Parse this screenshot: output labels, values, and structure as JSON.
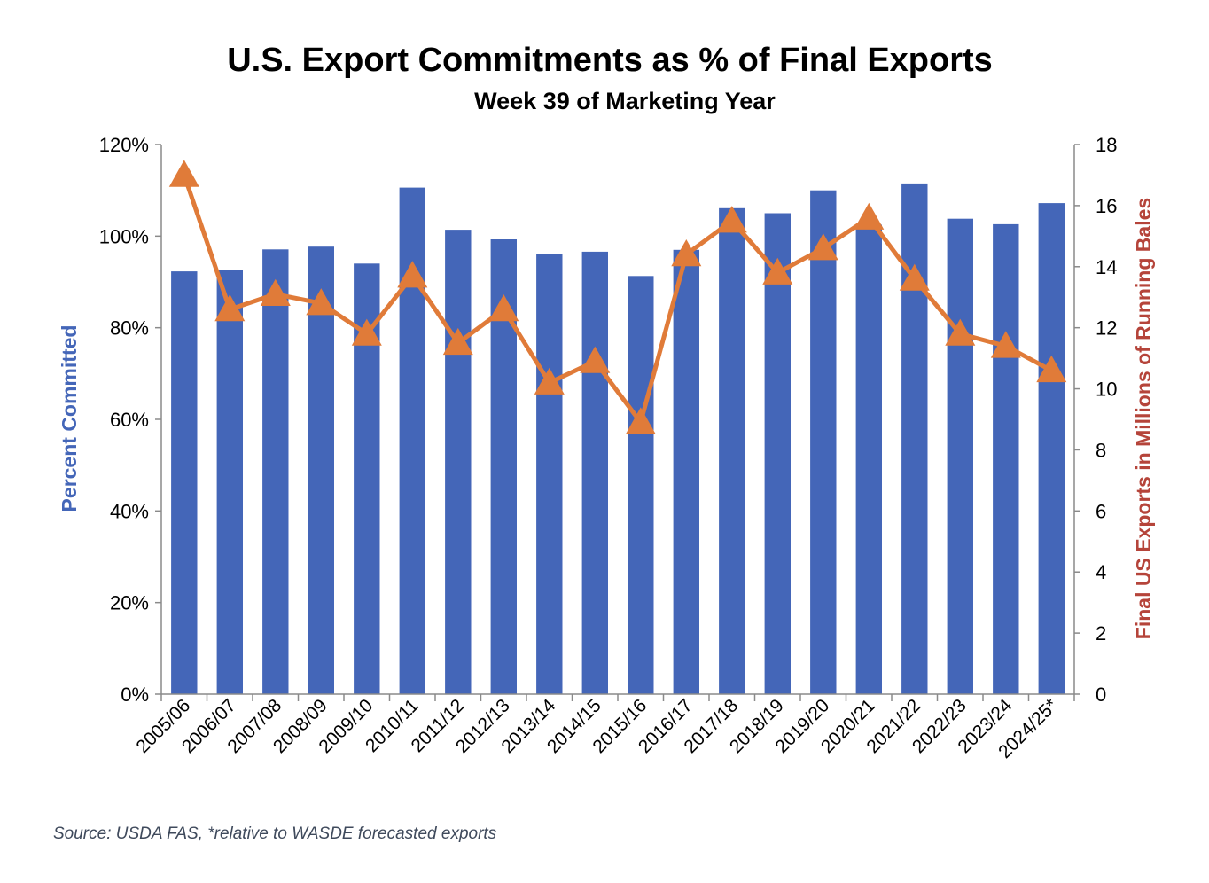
{
  "chart_data": {
    "type": "bar",
    "title": "U.S. Export Commitments as % of Final Exports",
    "subtitle": "Week 39 of Marketing Year",
    "categories": [
      "2005/06",
      "2006/07",
      "2007/08",
      "2008/09",
      "2009/10",
      "2010/11",
      "2011/12",
      "2012/13",
      "2013/14",
      "2014/15",
      "2015/16",
      "2016/17",
      "2017/18",
      "2018/19",
      "2019/20",
      "2020/21",
      "2021/22",
      "2022/23",
      "2023/24",
      "2024/25*"
    ],
    "series": [
      {
        "name": "Percent Committed",
        "type": "bar",
        "axis": "left",
        "color": "#4466B8",
        "values": [
          92.3,
          92.7,
          97.1,
          97.7,
          94.0,
          110.6,
          101.4,
          99.3,
          96.0,
          96.6,
          91.3,
          97.0,
          106.1,
          105.0,
          110.0,
          102.5,
          111.5,
          103.8,
          102.6,
          107.2
        ]
      },
      {
        "name": "Final US Exports in Millions of Running Bales",
        "type": "line",
        "axis": "right",
        "color": "#E07B39",
        "values": [
          17.0,
          12.6,
          13.1,
          12.8,
          11.8,
          13.7,
          11.5,
          12.6,
          10.2,
          10.9,
          8.9,
          14.4,
          15.5,
          13.8,
          14.6,
          15.6,
          13.6,
          11.8,
          11.4,
          10.6
        ]
      }
    ],
    "y_left": {
      "label": "Percent Committed",
      "min": 0,
      "max": 120,
      "ticks": [
        "0%",
        "20%",
        "40%",
        "60%",
        "80%",
        "100%",
        "120%"
      ],
      "tick_values": [
        0,
        20,
        40,
        60,
        80,
        100,
        120
      ],
      "color": "#4466B8"
    },
    "y_right": {
      "label": "Final US Exports in Millions of Running Bales",
      "min": 0,
      "max": 18,
      "ticks": [
        "0",
        "2",
        "4",
        "6",
        "8",
        "10",
        "12",
        "14",
        "16",
        "18"
      ],
      "tick_values": [
        0,
        2,
        4,
        6,
        8,
        10,
        12,
        14,
        16,
        18
      ],
      "color": "#B5443A"
    },
    "grid": false,
    "legend": "none"
  },
  "source_note": "Source: USDA FAS, *relative to WASDE forecasted exports",
  "colors": {
    "source": "#3F4A5C"
  }
}
